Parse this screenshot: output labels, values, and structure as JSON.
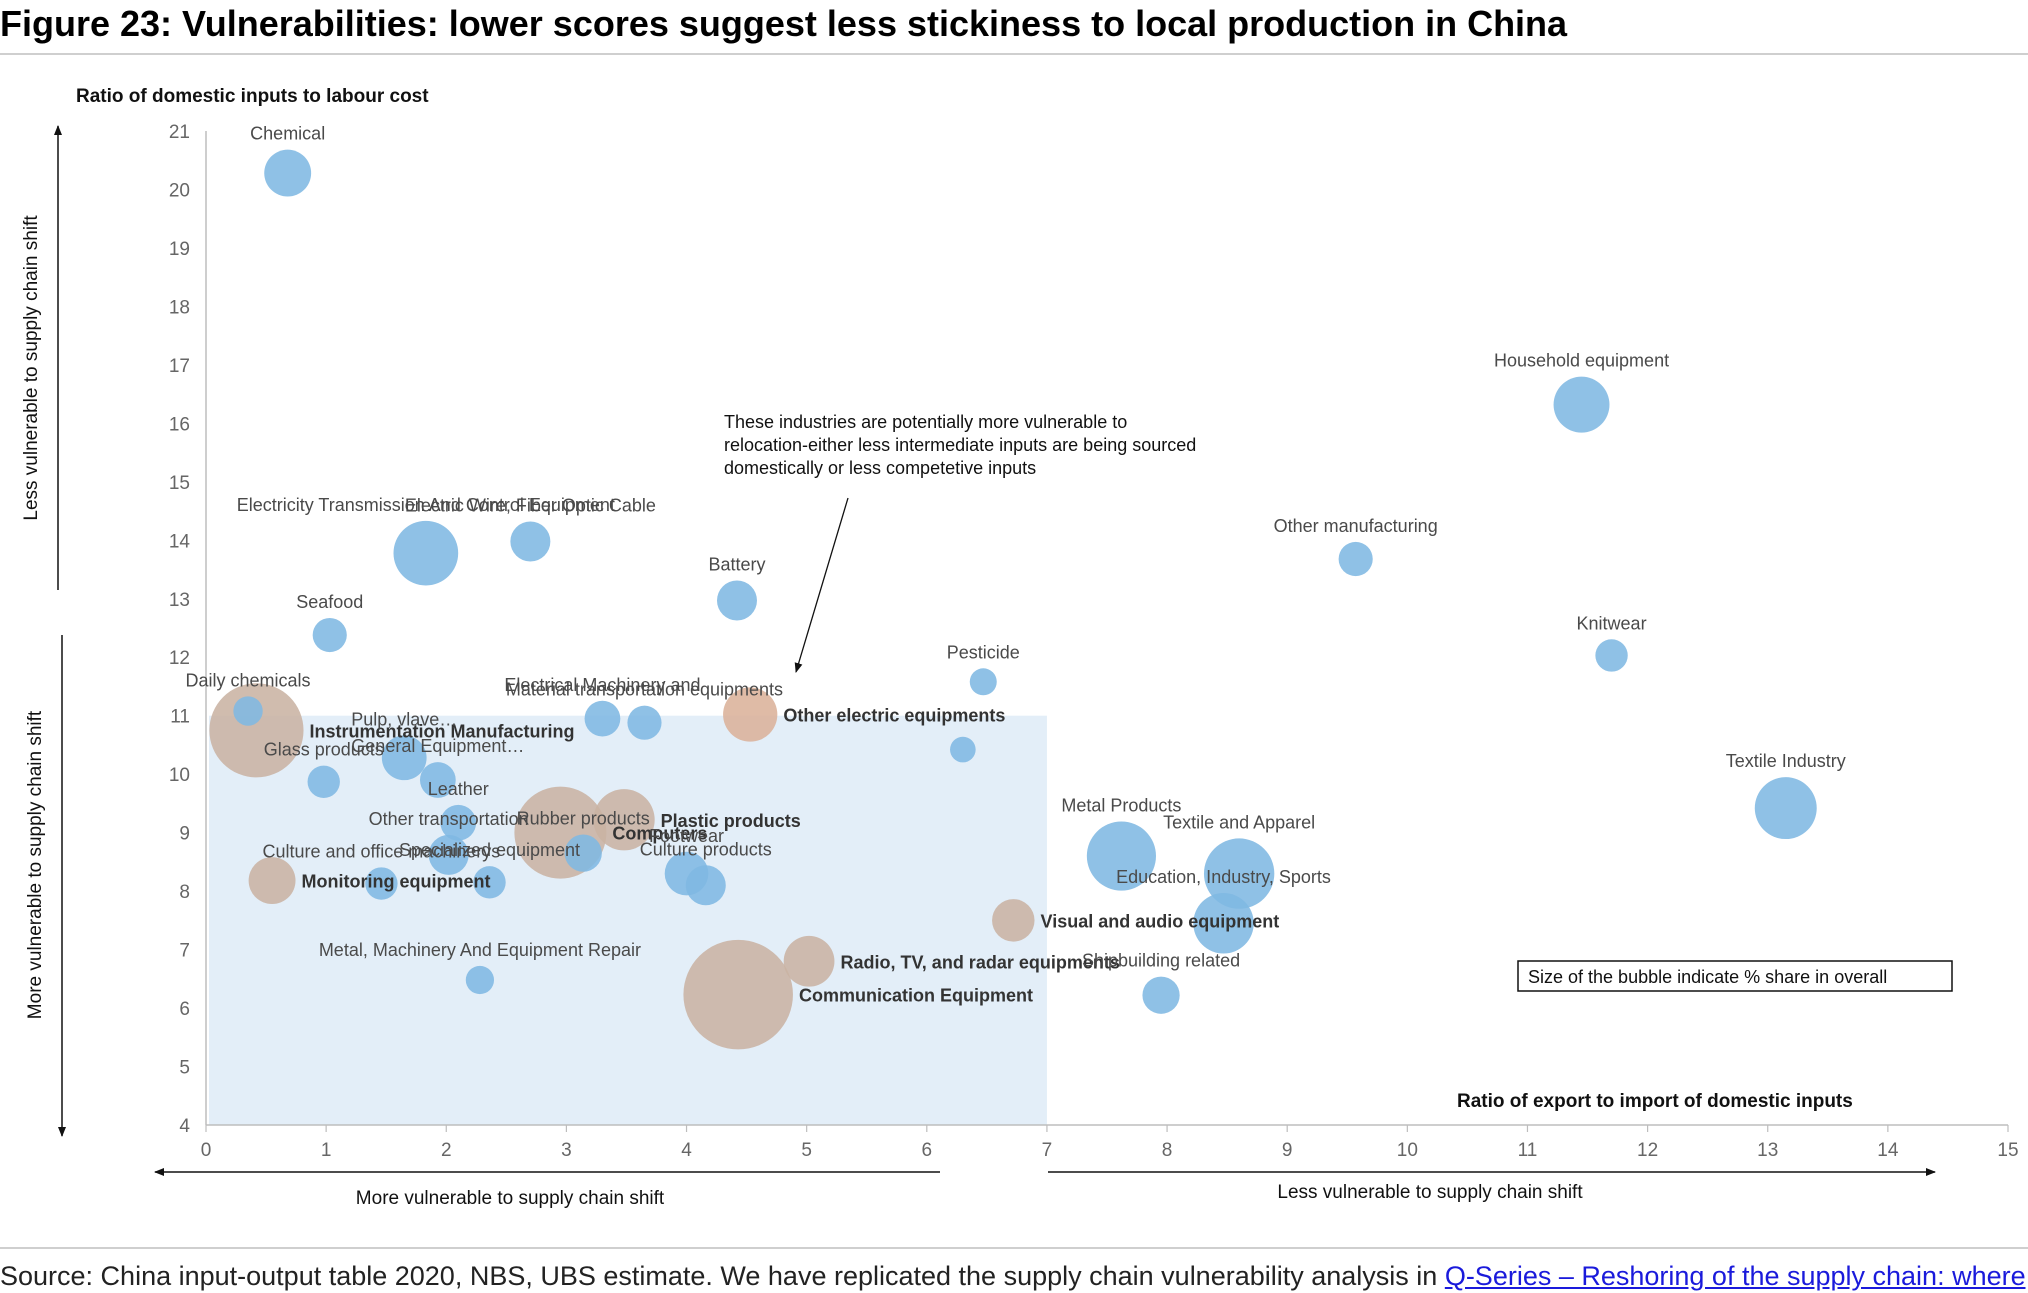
{
  "figure": {
    "title": "Figure 23: Vulnerabilities: lower scores suggest less stickiness to local production in China",
    "source_text": "Source: China input-output table 2020, NBS, UBS estimate. We have replicated the supply chain vulnerability analysis in ",
    "source_link": "Q-Series – Reshoring of the supply chain: where,"
  },
  "chart_data": {
    "type": "scatter",
    "ylabel": "Ratio of domestic inputs to labour cost",
    "xlabel": "Ratio of export to import of domestic inputs",
    "xlim": [
      0,
      15
    ],
    "ylim": [
      4,
      21
    ],
    "x_ticks": [
      "0",
      "1",
      "2",
      "3",
      "4",
      "5",
      "6",
      "7",
      "8",
      "9",
      "10",
      "11",
      "12",
      "13",
      "14",
      "15"
    ],
    "y_ticks": [
      "4",
      "5",
      "6",
      "7",
      "8",
      "9",
      "10",
      "11",
      "12",
      "13",
      "14",
      "15",
      "16",
      "17",
      "18",
      "19",
      "20",
      "21"
    ],
    "shaded_region": {
      "x": [
        0,
        7
      ],
      "y": [
        4,
        11
      ],
      "color": "#e3eef8"
    },
    "bubble_note": "Size of the bubble indicate % share in overall",
    "annotation": {
      "lines": [
        "These industries are potentially more vulnerable to",
        "relocation-either less intermediate inputs are being sourced",
        "domestically or less competetive inputs"
      ]
    },
    "side_labels": {
      "y_upper": "Less vulnerable to supply chain shift",
      "y_lower": "More vulnerable to supply chain shift",
      "x_left": "More vulnerable to supply chain shift",
      "x_right": "Less vulnerable to supply chain shift"
    },
    "colors": {
      "blue": "#7fb8e2",
      "tan": "#c9b3a3",
      "highlight": "#dbb29a"
    },
    "points": [
      {
        "label": "Chemical",
        "x": 0.68,
        "y": 20.28,
        "size": 1.6,
        "color": "blue",
        "bold": false
      },
      {
        "label": "Household equipment",
        "x": 11.45,
        "y": 16.32,
        "size": 2.6,
        "color": "blue",
        "bold": false
      },
      {
        "label": "Electricity Transmission And Control Equipment",
        "x": 1.83,
        "y": 13.78,
        "size": 3.8,
        "color": "blue",
        "bold": false
      },
      {
        "label": "Electric Wire, Fiber Optic Cable",
        "x": 2.7,
        "y": 13.98,
        "size": 1.0,
        "color": "blue",
        "bold": false
      },
      {
        "label": "Other manufacturing",
        "x": 9.57,
        "y": 13.68,
        "size": 0.6,
        "color": "blue",
        "bold": false
      },
      {
        "label": "Battery",
        "x": 4.42,
        "y": 12.97,
        "size": 1.0,
        "color": "blue",
        "bold": false
      },
      {
        "label": "Seafood",
        "x": 1.03,
        "y": 12.38,
        "size": 0.6,
        "color": "blue",
        "bold": false
      },
      {
        "label": "Knitwear",
        "x": 11.7,
        "y": 12.03,
        "size": 0.5,
        "color": "blue",
        "bold": false
      },
      {
        "label": "Pesticide",
        "x": 6.47,
        "y": 11.58,
        "size": 0.25,
        "color": "blue",
        "bold": false
      },
      {
        "label": "Daily chemicals",
        "x": 0.35,
        "y": 11.08,
        "size": 0.35,
        "color": "blue",
        "bold": false
      },
      {
        "label": "Electrical Machinery and",
        "x": 3.3,
        "y": 10.95,
        "size": 0.7,
        "color": "blue",
        "bold": false
      },
      {
        "label": "Material transportation equipments",
        "x": 3.65,
        "y": 10.88,
        "size": 0.6,
        "color": "blue",
        "bold": false
      },
      {
        "label": "Other electric equipments",
        "x": 4.53,
        "y": 11.02,
        "size": 2.4,
        "color": "highlight",
        "bold": true
      },
      {
        "label": "Instrumentation Manufacturing",
        "x": 0.42,
        "y": 10.75,
        "size": 9.5,
        "color": "tan",
        "bold": true
      },
      {
        "label": "Pulp, vlave…",
        "x": 1.65,
        "y": 10.28,
        "size": 1.4,
        "color": "blue",
        "bold": false
      },
      {
        "label": "",
        "x": 6.3,
        "y": 10.42,
        "size": 0.2,
        "color": "blue",
        "bold": false
      },
      {
        "label": "Glass products",
        "x": 0.98,
        "y": 9.87,
        "size": 0.5,
        "color": "blue",
        "bold": false
      },
      {
        "label": "General Equipment…",
        "x": 1.93,
        "y": 9.9,
        "size": 0.7,
        "color": "blue",
        "bold": false
      },
      {
        "label": "Textile Industry",
        "x": 13.15,
        "y": 9.42,
        "size": 3.4,
        "color": "blue",
        "bold": false
      },
      {
        "label": "Leather",
        "x": 2.1,
        "y": 9.17,
        "size": 0.7,
        "color": "blue",
        "bold": false
      },
      {
        "label": "Computers",
        "x": 2.95,
        "y": 9.0,
        "size": 9.0,
        "color": "tan",
        "bold": true
      },
      {
        "label": "Plastic products",
        "x": 3.48,
        "y": 9.22,
        "size": 3.3,
        "color": "tan",
        "bold": true
      },
      {
        "label": "Other transportation",
        "x": 2.02,
        "y": 8.62,
        "size": 1.0,
        "color": "blue",
        "bold": false
      },
      {
        "label": "Rubber products",
        "x": 3.14,
        "y": 8.65,
        "size": 0.8,
        "color": "blue",
        "bold": false
      },
      {
        "label": "Metal Products",
        "x": 7.62,
        "y": 8.6,
        "size": 4.5,
        "color": "blue",
        "bold": false
      },
      {
        "label": "Textile and Apparel",
        "x": 8.6,
        "y": 8.3,
        "size": 4.7,
        "color": "blue",
        "bold": false
      },
      {
        "label": "Monitoring equipment",
        "x": 0.55,
        "y": 8.18,
        "size": 1.6,
        "color": "tan",
        "bold": true
      },
      {
        "label": "Culture and office machinerys",
        "x": 1.46,
        "y": 8.13,
        "size": 0.5,
        "color": "blue",
        "bold": false
      },
      {
        "label": "Specialized equipment",
        "x": 2.36,
        "y": 8.15,
        "size": 0.5,
        "color": "blue",
        "bold": false
      },
      {
        "label": "Footwear",
        "x": 4.0,
        "y": 8.3,
        "size": 1.3,
        "color": "blue",
        "bold": false
      },
      {
        "label": "Culture products",
        "x": 4.16,
        "y": 8.1,
        "size": 1.0,
        "color": "blue",
        "bold": false
      },
      {
        "label": "Visual and audio equipment",
        "x": 6.72,
        "y": 7.5,
        "size": 1.2,
        "color": "tan",
        "bold": true
      },
      {
        "label": "Education, Industry, Sports",
        "x": 8.47,
        "y": 7.45,
        "size": 3.2,
        "color": "blue",
        "bold": false
      },
      {
        "label": "Radio, TV, and radar equipments",
        "x": 5.02,
        "y": 6.8,
        "size": 2.0,
        "color": "tan",
        "bold": true
      },
      {
        "label": "Metal, Machinery And Equipment Repair",
        "x": 2.28,
        "y": 6.48,
        "size": 0.3,
        "color": "blue",
        "bold": false
      },
      {
        "label": "Communication Equipment",
        "x": 4.43,
        "y": 6.23,
        "size": 13.5,
        "color": "tan",
        "bold": true
      },
      {
        "label": "Shipbuilding related",
        "x": 7.95,
        "y": 6.22,
        "size": 0.8,
        "color": "blue",
        "bold": false
      }
    ]
  }
}
